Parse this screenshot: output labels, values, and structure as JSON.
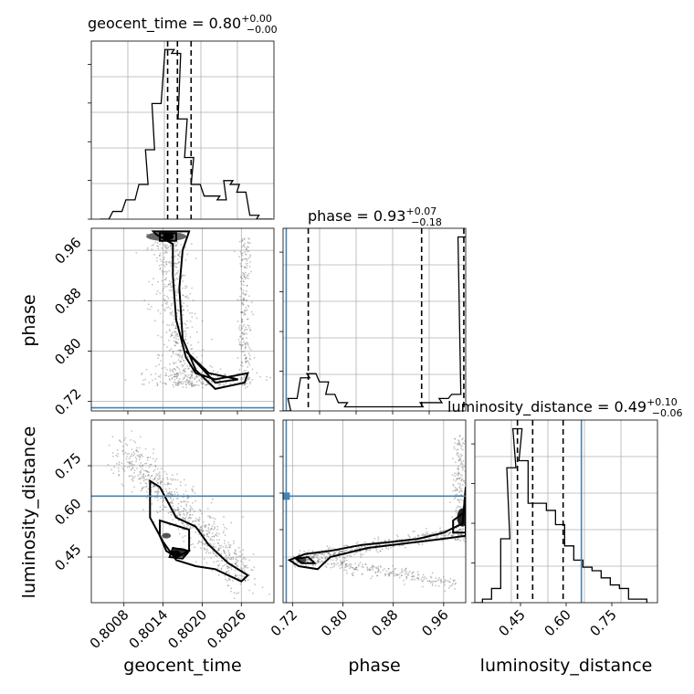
{
  "chart_data": [
    {
      "type": "histogram",
      "panel": "geocent_time-marginal",
      "title_main": "geocent_time = 0.80",
      "title_sup": "+0.00",
      "title_sub": "−0.00",
      "xlim": [
        0.8003,
        0.8031
      ],
      "bin_centers": [
        0.8005,
        0.8007,
        0.8009,
        0.8011,
        0.8012,
        0.8013,
        0.8015,
        0.8016,
        0.8017,
        0.8018,
        0.8019,
        0.8021,
        0.8022,
        0.8023,
        0.8024,
        0.8025,
        0.8026,
        0.8028,
        0.8029,
        0.803
      ],
      "counts": [
        0,
        2,
        5,
        9,
        18,
        30,
        44,
        43,
        26,
        16,
        9,
        6,
        6,
        5,
        10,
        9,
        7,
        1,
        0,
        0
      ],
      "quantiles": [
        0.80147,
        0.80162,
        0.80183
      ],
      "grid": true
    },
    {
      "type": "scatter-contour",
      "panel": "geocent_time-vs-phase",
      "xlim": [
        0.8003,
        0.8031
      ],
      "ylim": [
        0.705,
        0.995
      ],
      "ylabel": "phase",
      "y_ticks": [
        "0.96",
        "0.88",
        "0.80",
        "0.72"
      ],
      "y_tick_values": [
        0.96,
        0.88,
        0.8,
        0.72
      ],
      "truth": {
        "phase": 0.71
      },
      "grid": true
    },
    {
      "type": "histogram",
      "panel": "phase-marginal",
      "title_main": "phase = 0.93",
      "title_sup": "+0.07",
      "title_sub": "−0.18",
      "xlim": [
        0.705,
        0.995
      ],
      "bin_centers": [
        0.71,
        0.72,
        0.74,
        0.75,
        0.77,
        0.78,
        0.8,
        0.81,
        0.83,
        0.84,
        0.86,
        0.87,
        0.89,
        0.9,
        0.92,
        0.93,
        0.95,
        0.96,
        0.98,
        0.99
      ],
      "counts": [
        0,
        3,
        8,
        9,
        7,
        4,
        2,
        1,
        1,
        1,
        1,
        1,
        1,
        1,
        1,
        2,
        2,
        3,
        4,
        42
      ],
      "quantiles": [
        0.745,
        0.925,
        0.992
      ],
      "truth": 0.71,
      "grid": true
    },
    {
      "type": "scatter-contour",
      "panel": "geocent_time-vs-luminosity_distance",
      "xlim": [
        0.8003,
        0.8031
      ],
      "ylim": [
        0.3,
        0.9
      ],
      "xlabel": "geocent_time",
      "ylabel": "luminosity_distance",
      "x_ticks": [
        "0.8008",
        "0.8014",
        "0.8020",
        "0.8026"
      ],
      "x_tick_values": [
        0.8008,
        0.8014,
        0.802,
        0.8026
      ],
      "y_ticks": [
        "0.75",
        "0.60",
        "0.45"
      ],
      "y_tick_values": [
        0.75,
        0.6,
        0.45
      ],
      "truth": {
        "luminosity_distance": 0.65
      },
      "grid": true
    },
    {
      "type": "scatter-contour",
      "panel": "phase-vs-luminosity_distance",
      "xlim": [
        0.705,
        0.995
      ],
      "ylim": [
        0.3,
        0.9
      ],
      "xlabel": "phase",
      "x_ticks": [
        "0.72",
        "0.80",
        "0.88",
        "0.96"
      ],
      "x_tick_values": [
        0.72,
        0.8,
        0.88,
        0.96
      ],
      "truth": {
        "phase": 0.71,
        "luminosity_distance": 0.65
      },
      "grid": true
    },
    {
      "type": "histogram",
      "panel": "luminosity_distance-marginal",
      "title_main": "luminosity_distance = 0.49",
      "title_sup": "+0.10",
      "title_sub": "−0.06",
      "xlim": [
        0.3,
        0.9
      ],
      "bin_centers": [
        0.31,
        0.34,
        0.37,
        0.4,
        0.42,
        0.44,
        0.46,
        0.49,
        0.52,
        0.55,
        0.58,
        0.61,
        0.64,
        0.67,
        0.7,
        0.73,
        0.76,
        0.79,
        0.82,
        0.85
      ],
      "counts": [
        0,
        1,
        4,
        18,
        38,
        49,
        40,
        28,
        28,
        26,
        22,
        16,
        12,
        10,
        9,
        7,
        5,
        4,
        1,
        1
      ],
      "quantiles": [
        0.44,
        0.49,
        0.59
      ],
      "truth": 0.65,
      "xlabel": "luminosity_distance",
      "x_ticks": [
        "0.45",
        "0.60",
        "0.75"
      ],
      "x_tick_values": [
        0.45,
        0.6,
        0.75
      ],
      "grid": true
    }
  ],
  "colors": {
    "truth": "#4682b4",
    "line": "#000000",
    "grid": "#b0b0b0",
    "points": "#555555"
  }
}
